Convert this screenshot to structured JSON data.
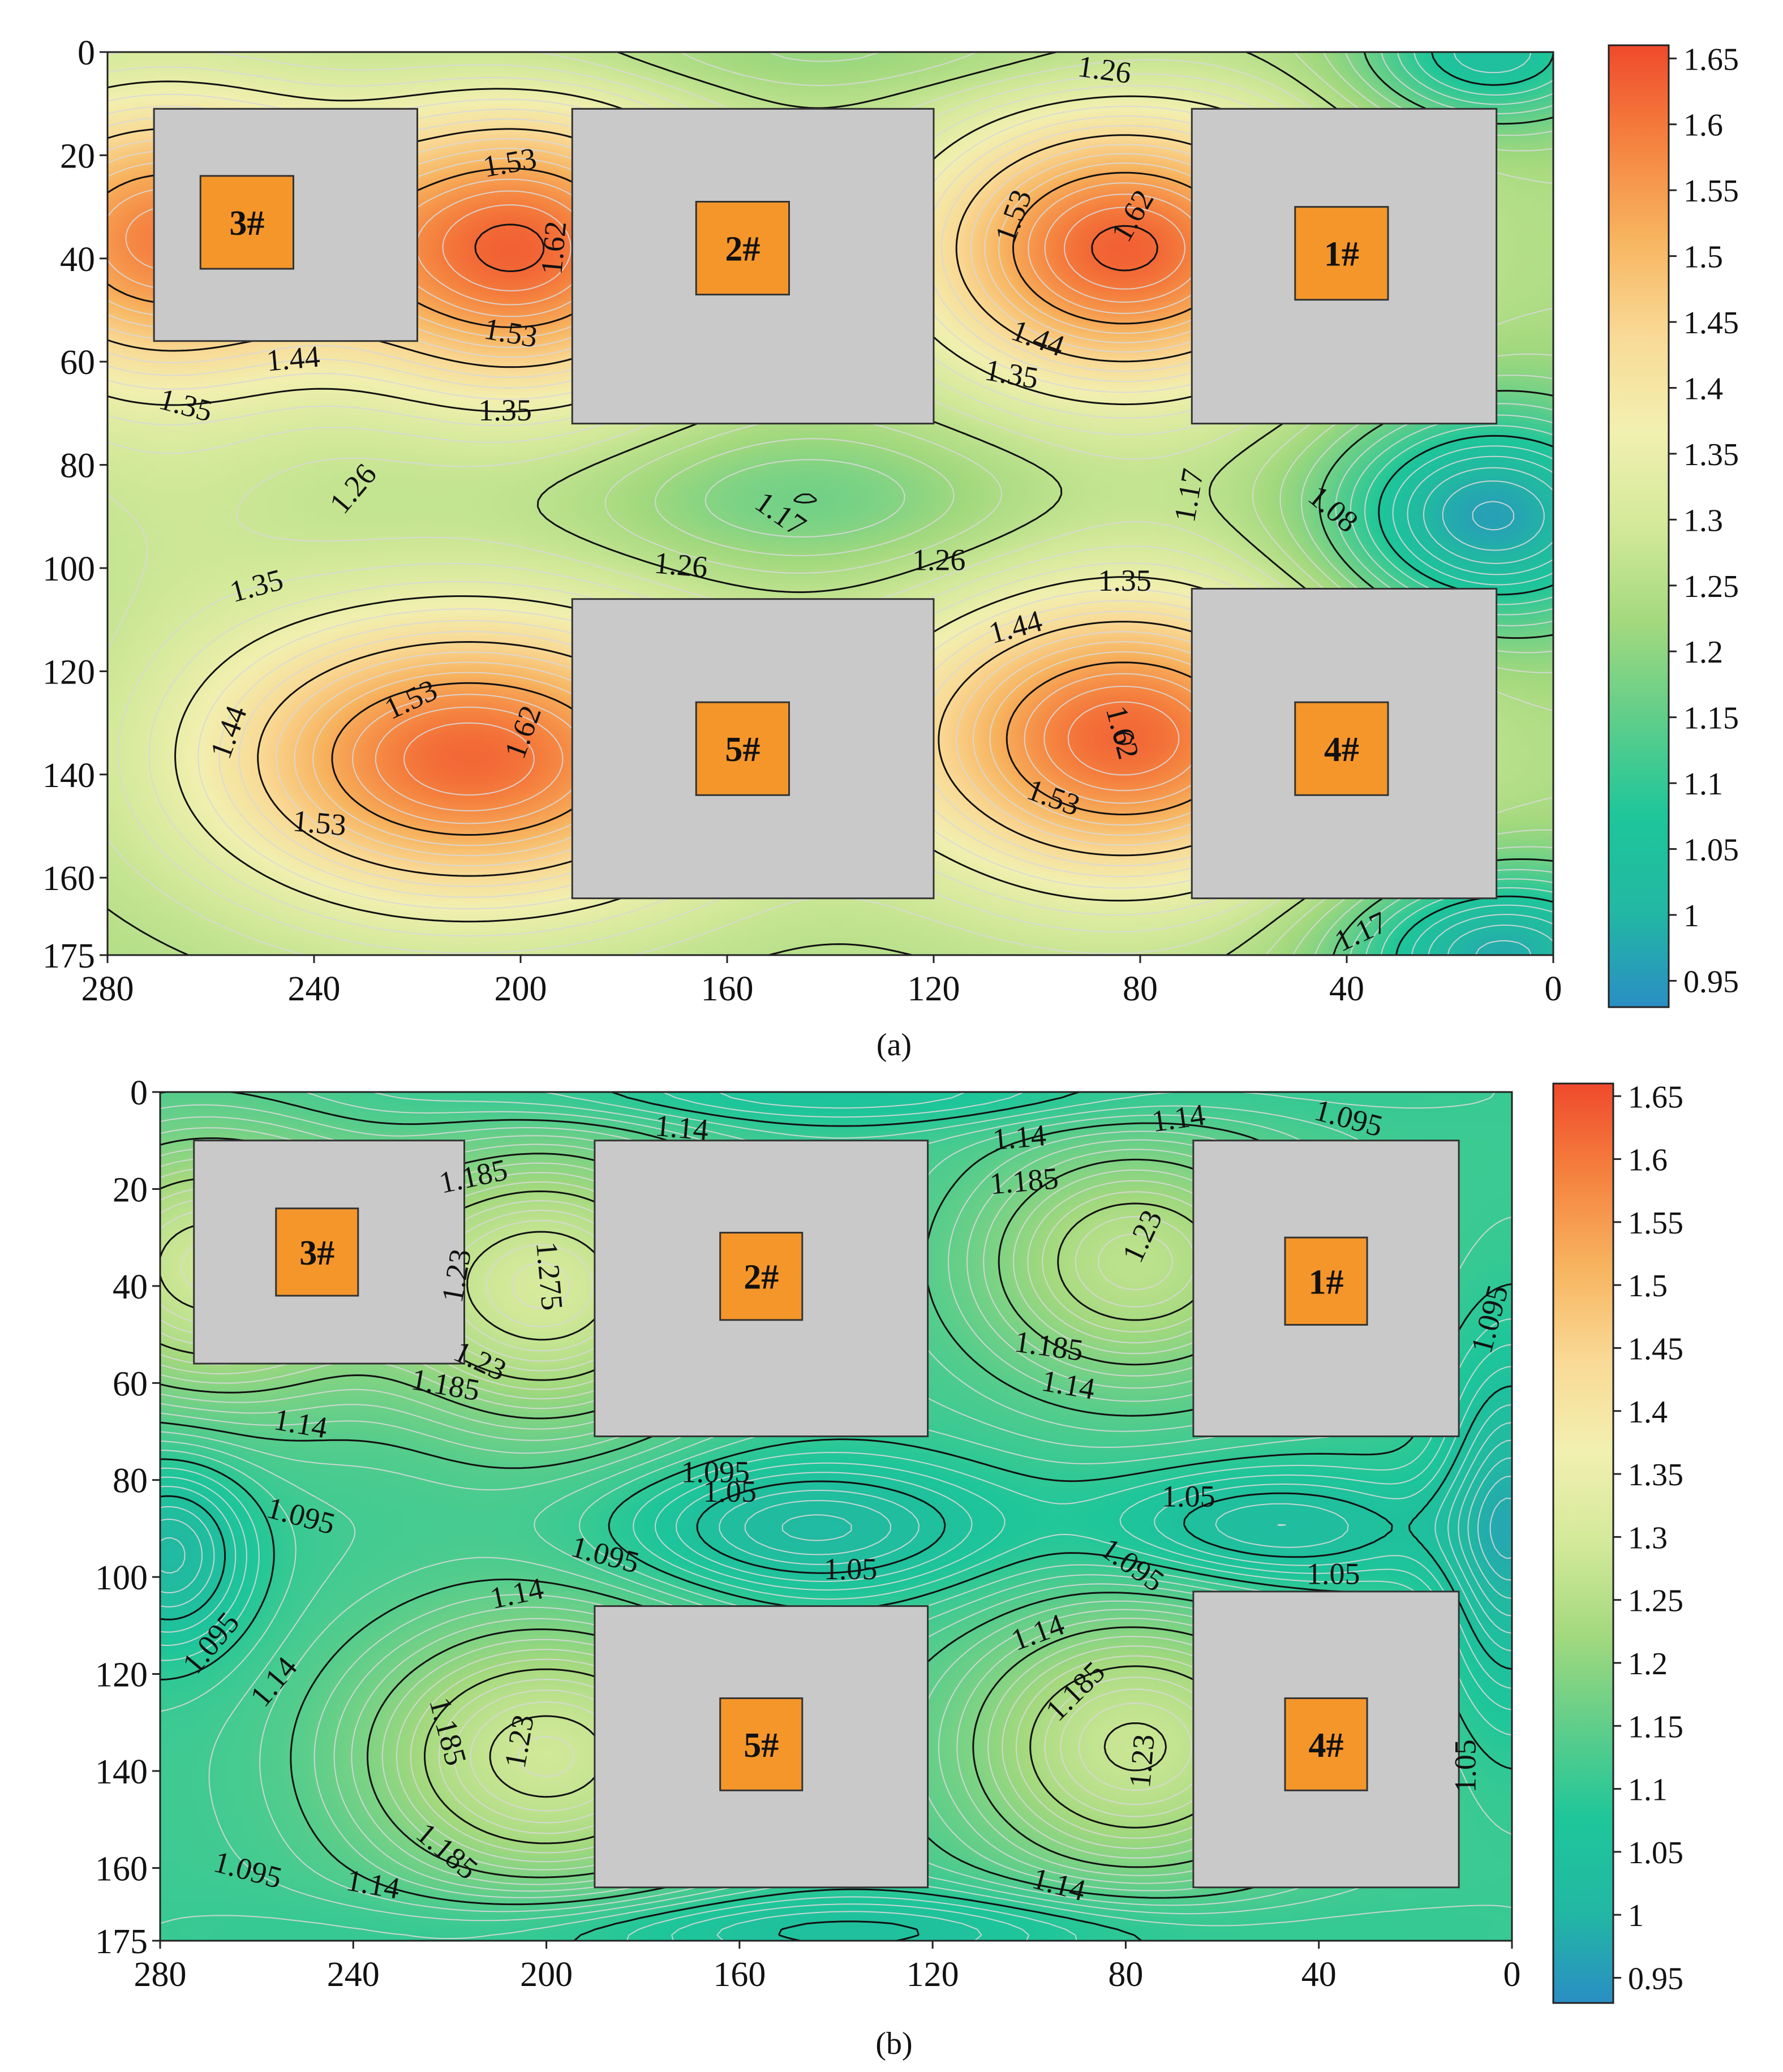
{
  "figure": {
    "panels": [
      {
        "label": "(a)",
        "label_letter": "a"
      },
      {
        "label": "(b)",
        "label_letter": "b"
      }
    ]
  },
  "colors": {
    "cmap": [
      "#2a8ec4",
      "#22b8a3",
      "#1ec69a",
      "#5fce8a",
      "#a3d97e",
      "#d3e99a",
      "#f2f0b0",
      "#f9d995",
      "#f7b45f",
      "#f5823f",
      "#ef4a2c"
    ],
    "building": "#c9c9c9",
    "building_border": "#333333",
    "tower": "#f5962a",
    "contour": "#111111",
    "minor_contour": "#d8d8d8"
  },
  "chart_data": [
    {
      "type": "heatmap",
      "panel": "a",
      "title": "",
      "xlim": [
        280,
        0
      ],
      "ylim": [
        175,
        0
      ],
      "x_ticks": [
        280,
        240,
        200,
        160,
        120,
        80,
        40,
        0
      ],
      "y_ticks": [
        0,
        20,
        40,
        60,
        80,
        100,
        120,
        140,
        160,
        175
      ],
      "colorbar": {
        "min": 0.93,
        "max": 1.66,
        "ticks": [
          1.65,
          1.6,
          1.55,
          1.5,
          1.45,
          1.4,
          1.35,
          1.3,
          1.25,
          1.2,
          1.15,
          1.1,
          1.05,
          1,
          0.95
        ]
      },
      "base_value": 1.24,
      "field_peaks": [
        {
          "x": 270,
          "y": 36,
          "value": 0.34,
          "sx": 26,
          "sy": 20
        },
        {
          "x": 200,
          "y": 38,
          "value": 0.38,
          "sx": 26,
          "sy": 20
        },
        {
          "x": 83,
          "y": 38,
          "value": 0.39,
          "sx": 28,
          "sy": 19
        },
        {
          "x": 210,
          "y": 137,
          "value": 0.38,
          "sx": 36,
          "sy": 20
        },
        {
          "x": 83,
          "y": 133,
          "value": 0.38,
          "sx": 30,
          "sy": 20
        },
        {
          "x": 270,
          "y": 90,
          "value": 0.03,
          "sx": 20,
          "sy": 18
        },
        {
          "x": 145,
          "y": 87,
          "value": -0.08,
          "sx": 28,
          "sy": 10
        },
        {
          "x": 12,
          "y": 90,
          "value": -0.28,
          "sx": 22,
          "sy": 15
        },
        {
          "x": 12,
          "y": 0,
          "value": -0.2,
          "sx": 18,
          "sy": 10
        },
        {
          "x": 10,
          "y": 175,
          "value": -0.26,
          "sx": 22,
          "sy": 12
        },
        {
          "x": 140,
          "y": 0,
          "value": -0.04,
          "sx": 50,
          "sy": 6
        }
      ],
      "contour_levels": [
        1.08,
        1.17,
        1.26,
        1.35,
        1.44,
        1.53,
        1.62
      ],
      "contour_labels": [
        {
          "text": "1.26",
          "x": 87,
          "y": 4,
          "rotate": 8
        },
        {
          "text": "1.53",
          "x": 202,
          "y": 22,
          "rotate": -10
        },
        {
          "text": "1.62",
          "x": 193,
          "y": 38,
          "rotate": -85
        },
        {
          "text": "1.53",
          "x": 202,
          "y": 55,
          "rotate": 10
        },
        {
          "text": "1.44",
          "x": 244,
          "y": 60,
          "rotate": -5
        },
        {
          "text": "1.35",
          "x": 265,
          "y": 69,
          "rotate": 15
        },
        {
          "text": "1.35",
          "x": 203,
          "y": 70,
          "rotate": 0
        },
        {
          "text": "1.53",
          "x": 104,
          "y": 32,
          "rotate": -70
        },
        {
          "text": "1.62",
          "x": 81,
          "y": 32,
          "rotate": -60
        },
        {
          "text": "1.44",
          "x": 100,
          "y": 56,
          "rotate": 20
        },
        {
          "text": "1.35",
          "x": 105,
          "y": 63,
          "rotate": 10
        },
        {
          "text": "1.26",
          "x": 232,
          "y": 85,
          "rotate": -50
        },
        {
          "text": "1.17",
          "x": 150,
          "y": 90,
          "rotate": 35
        },
        {
          "text": "1.17",
          "x": 70,
          "y": 86,
          "rotate": -80
        },
        {
          "text": "1.08",
          "x": 43,
          "y": 89,
          "rotate": 40
        },
        {
          "text": "1.26",
          "x": 169,
          "y": 100,
          "rotate": 5
        },
        {
          "text": "1.26",
          "x": 119,
          "y": 99,
          "rotate": 0
        },
        {
          "text": "1.35",
          "x": 83,
          "y": 103,
          "rotate": 0
        },
        {
          "text": "1.35",
          "x": 251,
          "y": 104,
          "rotate": -15
        },
        {
          "text": "1.44",
          "x": 104,
          "y": 112,
          "rotate": -15
        },
        {
          "text": "1.53",
          "x": 221,
          "y": 126,
          "rotate": -25
        },
        {
          "text": "1.44",
          "x": 256,
          "y": 132,
          "rotate": -70
        },
        {
          "text": "1.62",
          "x": 199,
          "y": 132,
          "rotate": -70
        },
        {
          "text": "1.62",
          "x": 84,
          "y": 132,
          "rotate": 75
        },
        {
          "text": "1.53",
          "x": 97,
          "y": 145,
          "rotate": 20
        },
        {
          "text": "1.53",
          "x": 239,
          "y": 150,
          "rotate": 5
        },
        {
          "text": "1.17",
          "x": 37,
          "y": 171,
          "rotate": -25
        }
      ],
      "buildings": [
        {
          "label": "3#",
          "x1": 271,
          "x2": 220,
          "y1": 11,
          "y2": 56,
          "tx1": 262,
          "tx2": 244,
          "ty1": 24,
          "ty2": 42
        },
        {
          "label": "2#",
          "x1": 190,
          "x2": 120,
          "y1": 11,
          "y2": 72,
          "tx1": 166,
          "tx2": 148,
          "ty1": 29,
          "ty2": 47
        },
        {
          "label": "1#",
          "x1": 70,
          "x2": 11,
          "y1": 11,
          "y2": 72,
          "tx1": 50,
          "tx2": 32,
          "ty1": 30,
          "ty2": 48
        },
        {
          "label": "5#",
          "x1": 190,
          "x2": 120,
          "y1": 106,
          "y2": 164,
          "tx1": 166,
          "tx2": 148,
          "ty1": 126,
          "ty2": 144
        },
        {
          "label": "4#",
          "x1": 70,
          "x2": 11,
          "y1": 104,
          "y2": 164,
          "tx1": 50,
          "tx2": 32,
          "ty1": 126,
          "ty2": 144
        }
      ]
    },
    {
      "type": "heatmap",
      "panel": "b",
      "title": "",
      "xlim": [
        280,
        0
      ],
      "ylim": [
        175,
        0
      ],
      "x_ticks": [
        280,
        240,
        200,
        160,
        120,
        80,
        40,
        0
      ],
      "y_ticks": [
        0,
        20,
        40,
        60,
        80,
        100,
        120,
        140,
        160,
        175
      ],
      "colorbar": {
        "min": 0.93,
        "max": 1.66,
        "ticks": [
          1.65,
          1.6,
          1.55,
          1.5,
          1.45,
          1.4,
          1.35,
          1.3,
          1.25,
          1.2,
          1.15,
          1.1,
          1.05,
          1,
          0.95
        ]
      },
      "base_value": 1.11,
      "field_peaks": [
        {
          "x": 270,
          "y": 36,
          "value": 0.18,
          "sx": 24,
          "sy": 20
        },
        {
          "x": 200,
          "y": 40,
          "value": 0.19,
          "sx": 24,
          "sy": 20
        },
        {
          "x": 78,
          "y": 35,
          "value": 0.15,
          "sx": 24,
          "sy": 18
        },
        {
          "x": 200,
          "y": 137,
          "value": 0.18,
          "sx": 28,
          "sy": 20
        },
        {
          "x": 78,
          "y": 135,
          "value": 0.17,
          "sx": 26,
          "sy": 20
        },
        {
          "x": 145,
          "y": 90,
          "value": -0.1,
          "sx": 28,
          "sy": 10
        },
        {
          "x": 50,
          "y": 90,
          "value": -0.09,
          "sx": 26,
          "sy": 9
        },
        {
          "x": 278,
          "y": 95,
          "value": -0.1,
          "sx": 12,
          "sy": 14
        },
        {
          "x": 0,
          "y": 90,
          "value": -0.12,
          "sx": 10,
          "sy": 25
        },
        {
          "x": 140,
          "y": 173,
          "value": -0.07,
          "sx": 60,
          "sy": 6
        },
        {
          "x": 140,
          "y": 0,
          "value": -0.05,
          "sx": 60,
          "sy": 5
        }
      ],
      "contour_levels": [
        1.05,
        1.095,
        1.14,
        1.185,
        1.23,
        1.275
      ],
      "contour_labels": [
        {
          "text": "1.14",
          "x": 172,
          "y": 8,
          "rotate": 5
        },
        {
          "text": "1.14",
          "x": 102,
          "y": 10,
          "rotate": -5
        },
        {
          "text": "1.14",
          "x": 69,
          "y": 6,
          "rotate": -8
        },
        {
          "text": "1.095",
          "x": 34,
          "y": 6,
          "rotate": 15
        },
        {
          "text": "1.185",
          "x": 215,
          "y": 18,
          "rotate": -12
        },
        {
          "text": "1.185",
          "x": 101,
          "y": 19,
          "rotate": -5
        },
        {
          "text": "1.23",
          "x": 218,
          "y": 38,
          "rotate": -80
        },
        {
          "text": "1.275",
          "x": 200,
          "y": 38,
          "rotate": 85
        },
        {
          "text": "1.23",
          "x": 76,
          "y": 30,
          "rotate": -65
        },
        {
          "text": "1.095",
          "x": 4,
          "y": 47,
          "rotate": -75
        },
        {
          "text": "1.23",
          "x": 214,
          "y": 56,
          "rotate": 25
        },
        {
          "text": "1.185",
          "x": 221,
          "y": 61,
          "rotate": 10
        },
        {
          "text": "1.185",
          "x": 96,
          "y": 53,
          "rotate": 8
        },
        {
          "text": "1.14",
          "x": 92,
          "y": 61,
          "rotate": 10
        },
        {
          "text": "1.14",
          "x": 251,
          "y": 69,
          "rotate": 10
        },
        {
          "text": "1.095",
          "x": 165,
          "y": 79,
          "rotate": 0
        },
        {
          "text": "1.05",
          "x": 162,
          "y": 83,
          "rotate": 0
        },
        {
          "text": "1.05",
          "x": 67,
          "y": 84,
          "rotate": 0
        },
        {
          "text": "1.095",
          "x": 251,
          "y": 88,
          "rotate": 15
        },
        {
          "text": "1.095",
          "x": 188,
          "y": 96,
          "rotate": 15
        },
        {
          "text": "1.05",
          "x": 137,
          "y": 99,
          "rotate": 0
        },
        {
          "text": "1.095",
          "x": 79,
          "y": 98,
          "rotate": 35
        },
        {
          "text": "1.05",
          "x": 37,
          "y": 100,
          "rotate": 0
        },
        {
          "text": "1.14",
          "x": 206,
          "y": 104,
          "rotate": -12
        },
        {
          "text": "1.14",
          "x": 98,
          "y": 112,
          "rotate": -20
        },
        {
          "text": "1.095",
          "x": 269,
          "y": 114,
          "rotate": -50
        },
        {
          "text": "1.14",
          "x": 256,
          "y": 122,
          "rotate": -50
        },
        {
          "text": "1.185",
          "x": 90,
          "y": 124,
          "rotate": -45
        },
        {
          "text": "1.185",
          "x": 221,
          "y": 132,
          "rotate": 75
        },
        {
          "text": "1.23",
          "x": 205,
          "y": 134,
          "rotate": -80
        },
        {
          "text": "1.23",
          "x": 76,
          "y": 138,
          "rotate": -85
        },
        {
          "text": "1.05",
          "x": 9,
          "y": 139,
          "rotate": -90
        },
        {
          "text": "1.185",
          "x": 221,
          "y": 157,
          "rotate": 40
        },
        {
          "text": "1.095",
          "x": 262,
          "y": 161,
          "rotate": 15
        },
        {
          "text": "1.14",
          "x": 236,
          "y": 164,
          "rotate": 10
        },
        {
          "text": "1.14",
          "x": 94,
          "y": 164,
          "rotate": 15
        }
      ],
      "buildings": [
        {
          "label": "3#",
          "x1": 273,
          "x2": 217,
          "y1": 10,
          "y2": 56,
          "tx1": 256,
          "tx2": 239,
          "ty1": 24,
          "ty2": 42
        },
        {
          "label": "2#",
          "x1": 190,
          "x2": 121,
          "y1": 10,
          "y2": 71,
          "tx1": 164,
          "tx2": 147,
          "ty1": 29,
          "ty2": 47
        },
        {
          "label": "1#",
          "x1": 66,
          "x2": 11,
          "y1": 10,
          "y2": 71,
          "tx1": 47,
          "tx2": 30,
          "ty1": 30,
          "ty2": 48
        },
        {
          "label": "5#",
          "x1": 190,
          "x2": 121,
          "y1": 106,
          "y2": 164,
          "tx1": 164,
          "tx2": 147,
          "ty1": 125,
          "ty2": 144
        },
        {
          "label": "4#",
          "x1": 66,
          "x2": 11,
          "y1": 103,
          "y2": 164,
          "tx1": 47,
          "tx2": 30,
          "ty1": 125,
          "ty2": 144
        }
      ]
    }
  ]
}
